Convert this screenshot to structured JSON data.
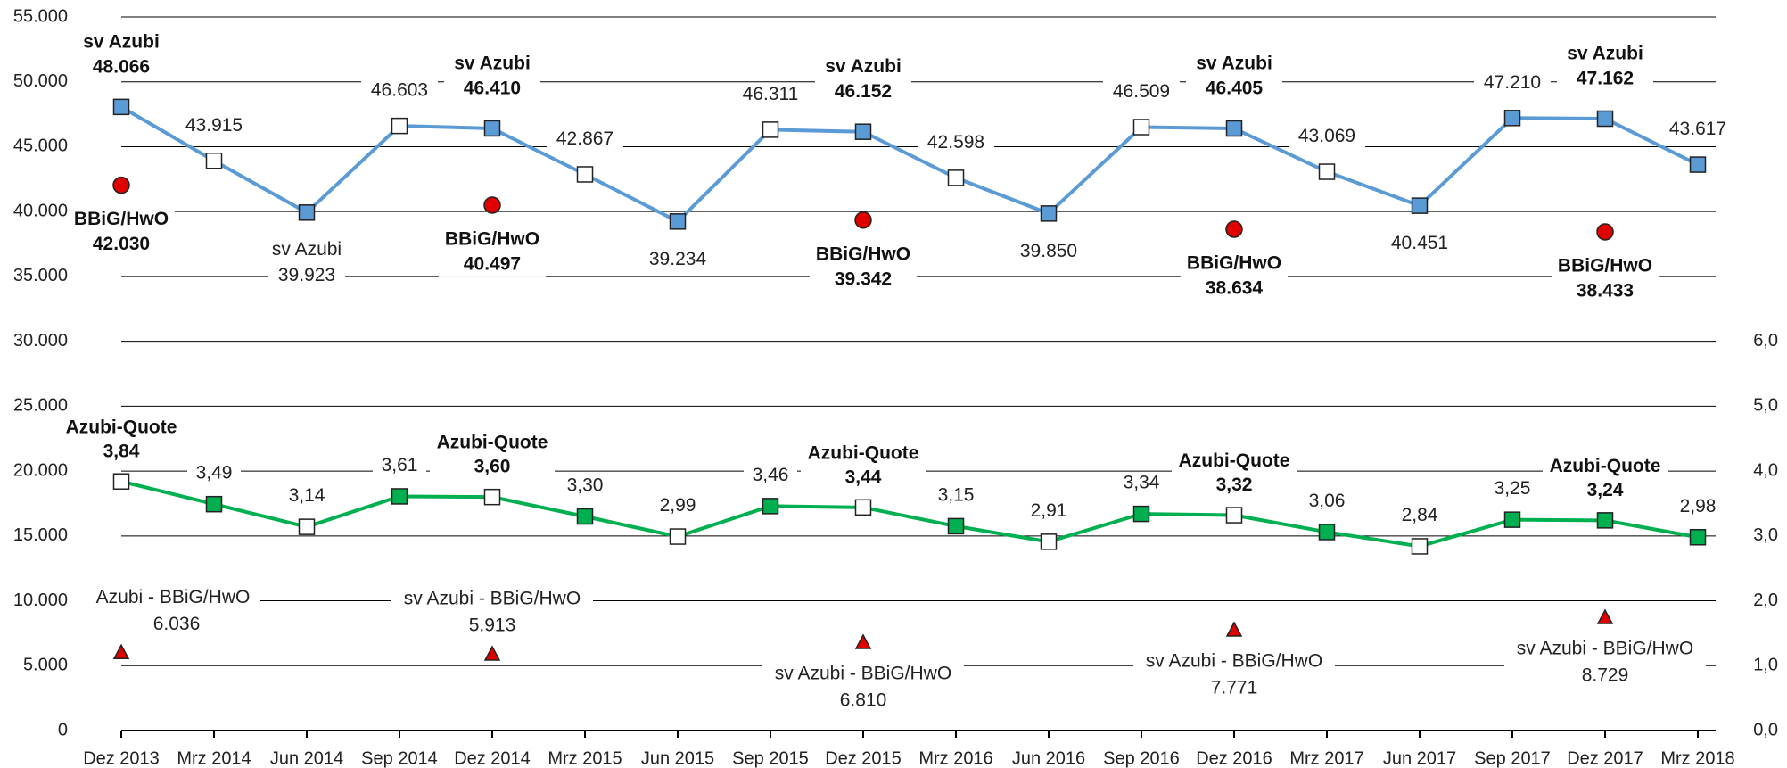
{
  "chart_data": {
    "type": "line",
    "categories": [
      "Dez 2013",
      "Mrz 2014",
      "Jun 2014",
      "Sep 2014",
      "Dez 2014",
      "Mrz 2015",
      "Jun 2015",
      "Sep 2015",
      "Dez 2015",
      "Mrz 2016",
      "Jun 2016",
      "Sep 2016",
      "Dez 2016",
      "Mrz 2017",
      "Jun 2017",
      "Sep 2017",
      "Dez 2017",
      "Mrz 2018"
    ],
    "y_left": {
      "ticks": [
        "0",
        "5.000",
        "10.000",
        "15.000",
        "20.000",
        "25.000",
        "30.000",
        "35.000",
        "40.000",
        "45.000",
        "50.000",
        "55.000"
      ],
      "range": [
        0,
        55000
      ]
    },
    "y_right": {
      "ticks": [
        "0,0",
        "1,0",
        "2,0",
        "3,0",
        "4,0",
        "5,0",
        "6,0"
      ],
      "range": [
        0,
        11
      ]
    },
    "grid": true,
    "series": [
      {
        "key": "azubi",
        "axis": "left",
        "color": "#5b9bd5",
        "values": [
          48066,
          43915,
          39923,
          46603,
          46410,
          42867,
          39234,
          46311,
          46152,
          42598,
          39850,
          46509,
          46405,
          43069,
          40451,
          47210,
          47162,
          43617
        ],
        "value_labels": [
          "48.066",
          "43.915",
          "39.923",
          "46.603",
          "46.410",
          "42.867",
          "39.234",
          "46.311",
          "46.152",
          "42.598",
          "39.850",
          "46.509",
          "46.405",
          "43.069",
          "40.451",
          "47.210",
          "47.162",
          "43.617"
        ],
        "marker_fill": [
          "#5b9bd5",
          "#ffffff",
          "#5b9bd5",
          "#ffffff",
          "#5b9bd5",
          "#ffffff",
          "#5b9bd5",
          "#ffffff",
          "#5b9bd5",
          "#ffffff",
          "#5b9bd5",
          "#ffffff",
          "#5b9bd5",
          "#ffffff",
          "#5b9bd5",
          "#5b9bd5",
          "#5b9bd5",
          "#5b9bd5"
        ]
      },
      {
        "key": "quote",
        "axis": "right",
        "color": "#00b050",
        "values": [
          3.84,
          3.49,
          3.14,
          3.61,
          3.6,
          3.3,
          2.99,
          3.46,
          3.44,
          3.15,
          2.91,
          3.34,
          3.32,
          3.06,
          2.84,
          3.25,
          3.24,
          2.98
        ],
        "value_labels": [
          "3,84",
          "3,49",
          "3,14",
          "3,61",
          "3,60",
          "3,30",
          "2,99",
          "3,46",
          "3,44",
          "3,15",
          "2,91",
          "3,34",
          "3,32",
          "3,06",
          "2,84",
          "3,25",
          "3,24",
          "2,98"
        ],
        "marker_fill": [
          "#ffffff",
          "#00b050",
          "#ffffff",
          "#00b050",
          "#ffffff",
          "#00b050",
          "#ffffff",
          "#00b050",
          "#ffffff",
          "#00b050",
          "#ffffff",
          "#00b050",
          "#ffffff",
          "#00b050",
          "#ffffff",
          "#00b050",
          "#00b050",
          "#00b050"
        ]
      }
    ],
    "bbig_points": [
      {
        "category": "Dez 2013",
        "value": 42030,
        "label": "42.030"
      },
      {
        "category": "Dez 2014",
        "value": 40497,
        "label": "40.497"
      },
      {
        "category": "Dez 2015",
        "value": 39342,
        "label": "39.342"
      },
      {
        "category": "Dez 2016",
        "value": 38634,
        "label": "38.634"
      },
      {
        "category": "Dez 2017",
        "value": 38433,
        "label": "38.433"
      }
    ],
    "diff_points": [
      {
        "category": "Dez 2013",
        "value": 6036,
        "label": "6.036"
      },
      {
        "category": "Dez 2014",
        "value": 5913,
        "label": "5.913"
      },
      {
        "category": "Dez 2015",
        "value": 6810,
        "label": "6.810"
      },
      {
        "category": "Dez 2016",
        "value": 7771,
        "label": "7.771"
      },
      {
        "category": "Dez 2017",
        "value": 8729,
        "label": "8.729"
      }
    ],
    "annotations": {
      "azubi_first": "sv Azubi",
      "azubi": "sv Azubi",
      "azubi_jun": "sv Azubi",
      "bbig": "BBiG/HwO",
      "quote": "Azubi-Quote",
      "diff_first": "Azubi - BBiG/HwO",
      "diff": "sv Azubi - BBiG/HwO"
    },
    "colors": {
      "red_marker": "#e00000",
      "grid": "#000000"
    }
  }
}
